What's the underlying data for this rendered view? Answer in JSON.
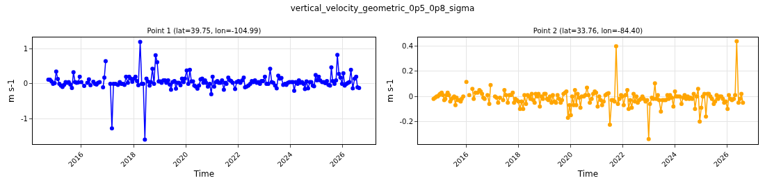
{
  "chart_data": [
    {
      "type": "line",
      "title": "vertical_velocity_geometric_0p5_0p8_sigma",
      "subtitle": "Point 1 (lat=39.75, lon=-104.99)",
      "xlabel": "Time",
      "ylabel": "m s-1",
      "xlim": [
        2014.14,
        2027.25
      ],
      "xticks": [
        2016,
        2018,
        2020,
        2022,
        2024,
        2026
      ],
      "ylim": [
        -1.73,
        1.33
      ],
      "yticks": [
        -1,
        0,
        1
      ],
      "grid": true,
      "marker": "circle",
      "line_style": "solid",
      "series": [
        {
          "color": "#0000ff",
          "x": [
            2014.74,
            2014.8,
            2014.86,
            2014.92,
            2014.98,
            2015.04,
            2015.1,
            2015.16,
            2015.22,
            2015.28,
            2015.34,
            2015.4,
            2015.46,
            2015.52,
            2015.58,
            2015.64,
            2015.7,
            2015.76,
            2015.82,
            2015.88,
            2015.94,
            2015.97,
            2016.0,
            2016.11,
            2016.17,
            2016.23,
            2016.29,
            2016.35,
            2016.4,
            2016.46,
            2016.52,
            2016.58,
            2016.64,
            2016.7,
            2016.76,
            2016.83,
            2016.88,
            2016.93,
            2017.0,
            2017.11,
            2017.17,
            2017.23,
            2017.31,
            2017.4,
            2017.47,
            2017.53,
            2017.59,
            2017.65,
            2017.71,
            2017.78,
            2017.83,
            2017.89,
            2017.95,
            2018.02,
            2018.07,
            2018.13,
            2018.18,
            2018.25,
            2018.31,
            2018.37,
            2018.43,
            2018.49,
            2018.54,
            2018.61,
            2018.66,
            2018.72,
            2018.78,
            2018.84,
            2018.9,
            2018.96,
            2019.02,
            2019.07,
            2019.14,
            2019.2,
            2019.25,
            2019.32,
            2019.38,
            2019.43,
            2019.49,
            2019.56,
            2019.62,
            2019.67,
            2019.73,
            2019.79,
            2019.85,
            2019.91,
            2019.96,
            2020.03,
            2020.09,
            2020.15,
            2020.21,
            2020.27,
            2020.32,
            2020.38,
            2020.44,
            2020.5,
            2020.56,
            2020.62,
            2020.67,
            2020.73,
            2020.77,
            2020.84,
            2020.91,
            2020.97,
            2021.02,
            2021.08,
            2021.15,
            2021.2,
            2021.26,
            2021.32,
            2021.38,
            2021.45,
            2021.5,
            2021.55,
            2021.62,
            2021.68,
            2021.73,
            2021.79,
            2021.88,
            2021.94,
            2022.01,
            2022.08,
            2022.15,
            2022.21,
            2022.26,
            2022.32,
            2022.39,
            2022.46,
            2022.52,
            2022.58,
            2022.64,
            2022.71,
            2022.77,
            2022.83,
            2022.89,
            2022.95,
            2023.02,
            2023.08,
            2023.15,
            2023.22,
            2023.28,
            2023.34,
            2023.41,
            2023.47,
            2023.53,
            2023.59,
            2023.65,
            2023.72,
            2023.79,
            2023.84,
            2023.9,
            2023.96,
            2024.04,
            2024.09,
            2024.14,
            2024.2,
            2024.27,
            2024.32,
            2024.38,
            2024.44,
            2024.5,
            2024.55,
            2024.61,
            2024.67,
            2024.74,
            2024.79,
            2024.85,
            2024.9,
            2024.96,
            2025.01,
            2025.08,
            2025.13,
            2025.21,
            2025.27,
            2025.33,
            2025.39,
            2025.45,
            2025.51,
            2025.56,
            2025.61,
            2025.68,
            2025.74,
            2025.79,
            2025.85,
            2025.91,
            2025.97,
            2026.02,
            2026.07,
            2026.14,
            2026.2,
            2026.25,
            2026.31,
            2026.38,
            2026.45,
            2026.51,
            2026.56,
            2026.62
          ],
          "values": [
            0.12,
            0.12,
            0.07,
            0.0,
            0.02,
            0.35,
            0.14,
            0.0,
            -0.05,
            -0.09,
            -0.03,
            0.05,
            0.03,
            0.05,
            -0.02,
            -0.12,
            0.33,
            0.05,
            0.03,
            0.04,
            0.2,
            null,
            0.05,
            -0.06,
            null,
            0.03,
            0.13,
            -0.04,
            null,
            0.06,
            0.0,
            -0.02,
            0.03,
            0.05,
            null,
            -0.1,
            0.18,
            0.65,
            null,
            0.0,
            -1.28,
            0.0,
            0.0,
            -0.03,
            0.05,
            0.0,
            0.0,
            -0.03,
            0.2,
            0.03,
            0.2,
            0.15,
            0.06,
            0.15,
            0.2,
            0.08,
            -0.04,
            1.2,
            0.0,
            0.0,
            -1.6,
            0.15,
            0.07,
            -0.05,
            0.05,
            0.43,
            0.0,
            0.82,
            0.62,
            0.07,
            0.07,
            0.03,
            0.1,
            0.1,
            0.03,
            0.1,
            -0.02,
            -0.17,
            0.05,
            0.08,
            -0.14,
            0.03,
            0.03,
            -0.04,
            0.15,
            0.05,
            0.15,
            0.38,
            0.0,
            0.4,
            0.07,
            0.07,
            -0.05,
            -0.08,
            -0.14,
            -0.05,
            0.13,
            0.15,
            0.03,
            0.1,
            0.03,
            -0.08,
            0.0,
            -0.3,
            0.2,
            -0.08,
            0.05,
            0.08,
            0.03,
            0.03,
            0.1,
            -0.17,
            0.03,
            0.0,
            0.18,
            0.1,
            0.08,
            0.03,
            -0.15,
            0.05,
            0.08,
            0.03,
            0.1,
            0.18,
            -0.1,
            -0.08,
            -0.05,
            0.0,
            0.08,
            0.05,
            0.1,
            0.03,
            0.05,
            0.0,
            0.08,
            0.08,
            0.2,
            0.0,
            0.0,
            0.43,
            0.05,
            0.03,
            -0.05,
            -0.13,
            0.23,
            0.15,
            0.17,
            -0.03,
            0.0,
            -0.03,
            0.03,
            0.05,
            0.05,
            0.05,
            -0.2,
            0.05,
            0.0,
            0.1,
            0.03,
            0.05,
            0.0,
            -0.15,
            0.07,
            -0.13,
            0.05,
            0.05,
            -0.05,
            -0.07,
            0.25,
            0.1,
            0.2,
            0.1,
            0.05,
            0.05,
            0.02,
            0.08,
            -0.03,
            -0.05,
            0.47,
            0.08,
            0.0,
            0.1,
            0.83,
            0.28,
            0.18,
            0.0,
            0.3,
            -0.05,
            0.0,
            0.03,
            0.05,
            0.4,
            -0.13,
            0.15,
            0.2,
            -0.1,
            -0.12
          ]
        }
      ]
    },
    {
      "type": "line",
      "subtitle": "Point 2 (lat=33.76, lon=-84.40)",
      "xlabel": "Time",
      "ylabel": "m s-1",
      "xlim": [
        2014.14,
        2027.2
      ],
      "xticks": [
        2016,
        2018,
        2020,
        2022,
        2024,
        2026
      ],
      "ylim": [
        -0.38,
        0.47
      ],
      "yticks": [
        -0.2,
        0.0,
        0.2,
        0.4
      ],
      "grid": true,
      "marker": "circle",
      "line_style": "solid",
      "series": [
        {
          "color": "#ffa500",
          "x": [
            2014.74,
            2014.8,
            2014.86,
            2014.9,
            2014.95,
            2014.99,
            2015.05,
            2015.1,
            2015.15,
            2015.19,
            2015.24,
            2015.28,
            2015.33,
            2015.38,
            2015.43,
            2015.49,
            2015.53,
            2015.58,
            2015.62,
            2015.67,
            2015.73,
            2015.78,
            2015.82,
            2015.88,
            2015.94,
            2016.0,
            2016.05,
            2016.11,
            2016.16,
            2016.23,
            2016.28,
            2016.35,
            2016.43,
            2016.5,
            2016.55,
            2016.6,
            2016.65,
            2016.7,
            2016.76,
            2016.81,
            2016.88,
            2016.93,
            2017.0,
            2017.1,
            2017.16,
            2017.22,
            2017.29,
            2017.34,
            2017.41,
            2017.46,
            2017.52,
            2017.59,
            2017.65,
            2017.71,
            2017.78,
            2017.83,
            2017.88,
            2017.94,
            2018.0,
            2018.06,
            2018.12,
            2018.18,
            2018.23,
            2018.29,
            2018.35,
            2018.41,
            2018.46,
            2018.51,
            2018.57,
            2018.62,
            2018.66,
            2018.72,
            2018.77,
            2018.82,
            2018.88,
            2018.94,
            2018.99,
            2019.04,
            2019.1,
            2019.15,
            2019.21,
            2019.27,
            2019.32,
            2019.38,
            2019.44,
            2019.5,
            2019.56,
            2019.62,
            2019.67,
            2019.73,
            2019.79,
            2019.84,
            2019.9,
            2019.96,
            2020.01,
            2020.06,
            2020.12,
            2020.17,
            2020.22,
            2020.27,
            2020.33,
            2020.38,
            2020.43,
            2020.51,
            2020.57,
            2020.63,
            2020.69,
            2020.74,
            2020.81,
            2020.87,
            2020.93,
            2020.98,
            2021.04,
            2021.1,
            2021.16,
            2021.21,
            2021.27,
            2021.34,
            2021.4,
            2021.46,
            2021.51,
            2021.58,
            2021.63,
            2021.69,
            2021.75,
            2021.82,
            2021.88,
            2021.94,
            2021.99,
            2022.04,
            2022.11,
            2022.18,
            2022.23,
            2022.29,
            2022.35,
            2022.42,
            2022.47,
            2022.53,
            2022.58,
            2022.64,
            2022.7,
            2022.76,
            2022.81,
            2022.88,
            2022.94,
            2023.0,
            2023.05,
            2023.12,
            2023.18,
            2023.24,
            2023.29,
            2023.35,
            2023.4,
            2023.47,
            2023.53,
            2023.59,
            2023.65,
            2023.72,
            2023.77,
            2023.82,
            2023.89,
            2023.95,
            2024.01,
            2024.06,
            2024.12,
            2024.19,
            2024.26,
            2024.32,
            2024.38,
            2024.44,
            2024.5,
            2024.56,
            2024.61,
            2024.67,
            2024.73,
            2024.78,
            2024.84,
            2024.9,
            2024.96,
            2025.02,
            2025.08,
            2025.14,
            2025.2,
            2025.26,
            2025.31,
            2025.37,
            2025.43,
            2025.5,
            2025.55,
            2025.61,
            2025.67,
            2025.73,
            2025.79,
            2025.85,
            2025.9,
            2025.96,
            2026.03,
            2026.08,
            2026.14,
            2026.2,
            2026.27,
            2026.32,
            2026.38,
            2026.45,
            2026.51,
            2026.56,
            2026.62
          ],
          "values": [
            -0.02,
            -0.01,
            0.0,
            0.0,
            0.01,
            0.02,
            0.03,
            0.01,
            -0.03,
            -0.02,
            0.01,
            0.03,
            0.01,
            -0.04,
            -0.02,
            -0.01,
            0.0,
            -0.07,
            -0.01,
            -0.03,
            -0.03,
            -0.04,
            -0.02,
            0.0,
            null,
            0.115,
            null,
            0.01,
            null,
            0.06,
            -0.02,
            0.03,
            0.03,
            0.05,
            0.04,
            0.02,
            -0.01,
            -0.02,
            null,
            0.01,
            -0.06,
            0.09,
            null,
            0.0,
            -0.01,
            -0.05,
            -0.01,
            null,
            -0.03,
            0.05,
            0.01,
            -0.05,
            0.01,
            0.01,
            0.03,
            -0.05,
            -0.02,
            -0.03,
            -0.04,
            -0.1,
            -0.04,
            -0.1,
            0.01,
            -0.06,
            0.01,
            0.0,
            -0.02,
            0.02,
            -0.03,
            -0.05,
            0.02,
            0.0,
            0.02,
            -0.08,
            0.0,
            -0.02,
            0.02,
            0.02,
            -0.02,
            -0.03,
            0.0,
            -0.05,
            0.01,
            -0.04,
            -0.05,
            0.01,
            -0.02,
            -0.05,
            -0.03,
            0.02,
            0.03,
            0.04,
            -0.17,
            -0.07,
            -0.15,
            0.0,
            -0.07,
            0.05,
            -0.07,
            0.02,
            -0.01,
            -0.09,
            0.0,
            0.0,
            0.01,
            0.07,
            0.01,
            -0.05,
            -0.02,
            0.02,
            0.04,
            0.03,
            -0.08,
            0.0,
            -0.03,
            -0.07,
            -0.04,
            0.01,
            0.02,
            0.025,
            -0.225,
            -0.03,
            -0.03,
            -0.04,
            0.4,
            -0.06,
            -0.02,
            0.01,
            0.0,
            -0.07,
            0.01,
            0.05,
            -0.1,
            -0.03,
            -0.09,
            0.02,
            -0.04,
            0.0,
            -0.05,
            -0.03,
            -0.02,
            0.0,
            -0.02,
            -0.04,
            -0.03,
            -0.34,
            -0.06,
            -0.01,
            -0.02,
            0.105,
            -0.02,
            0.01,
            -0.03,
            -0.12,
            -0.03,
            -0.03,
            -0.03,
            0.01,
            -0.02,
            0.01,
            -0.01,
            -0.08,
            0.04,
            0.0,
            0.0,
            0.0,
            -0.06,
            -0.01,
            0.01,
            -0.02,
            0.0,
            -0.02,
            -0.01,
            -0.02,
            0.02,
            -0.1,
            0.0,
            0.06,
            -0.2,
            -0.09,
            0.0,
            0.02,
            -0.16,
            0.02,
            0.02,
            0.0,
            -0.02,
            -0.06,
            -0.04,
            0.01,
            -0.02,
            0.0,
            0.0,
            -0.02,
            -0.05,
            -0.04,
            -0.1,
            0.01,
            -0.02,
            -0.03,
            -0.02,
            0.01,
            0.44,
            -0.05,
            -0.02,
            0.02,
            -0.05
          ]
        }
      ]
    }
  ]
}
